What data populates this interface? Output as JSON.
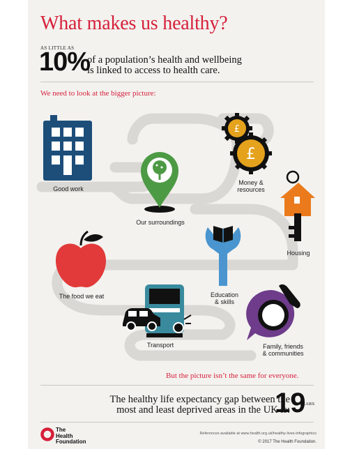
{
  "header": {
    "title": "What makes us healthy?",
    "as_little_as": "AS LITTLE AS",
    "percentage": "10%",
    "statement_line1": "of a population’s health and wellbeing",
    "statement_line2": "is linked to access to health care."
  },
  "intro": "We need to look at the bigger picture:",
  "factors": [
    {
      "label": "Good work",
      "icon": "office-building-icon"
    },
    {
      "label": "Our surroundings",
      "icon": "map-pin-tree-icon"
    },
    {
      "label_line1": "Money &",
      "label_line2": "resources",
      "icon": "gear-coin-icon"
    },
    {
      "label": "Housing",
      "icon": "house-key-icon"
    },
    {
      "label": "The food we eat",
      "icon": "apple-icon"
    },
    {
      "label_line1": "Education",
      "label_line2": "& skills",
      "icon": "wrench-book-icon"
    },
    {
      "label": "Transport",
      "icon": "train-car-icon"
    },
    {
      "label_line1": "Family, friends",
      "label_line2": "& communities",
      "icon": "speech-bubble-icon"
    }
  ],
  "conclusion": "But the picture isn’t the same for everyone.",
  "gap": {
    "line1": "The healthy life expectancy gap between the",
    "line2": "most and least deprived areas in the UK is:",
    "value": "19",
    "unit": "YEARS"
  },
  "footer": {
    "logo_line1": "The",
    "logo_line2": "Health",
    "logo_line3": "Foundation",
    "references": "References available at www.health.org.uk/healthy-lives-infographics",
    "copyright": "© 2017 The Health Foundation."
  },
  "colors": {
    "accent_red": "#d6203a",
    "navy": "#1d4e7a",
    "green": "#4d9a45",
    "gold": "#e5a21c",
    "orange": "#ea7a1c",
    "light_blue": "#4a95cf",
    "teal": "#3a8a9e",
    "purple": "#6e3c8a",
    "road": "#d9d8d4"
  }
}
